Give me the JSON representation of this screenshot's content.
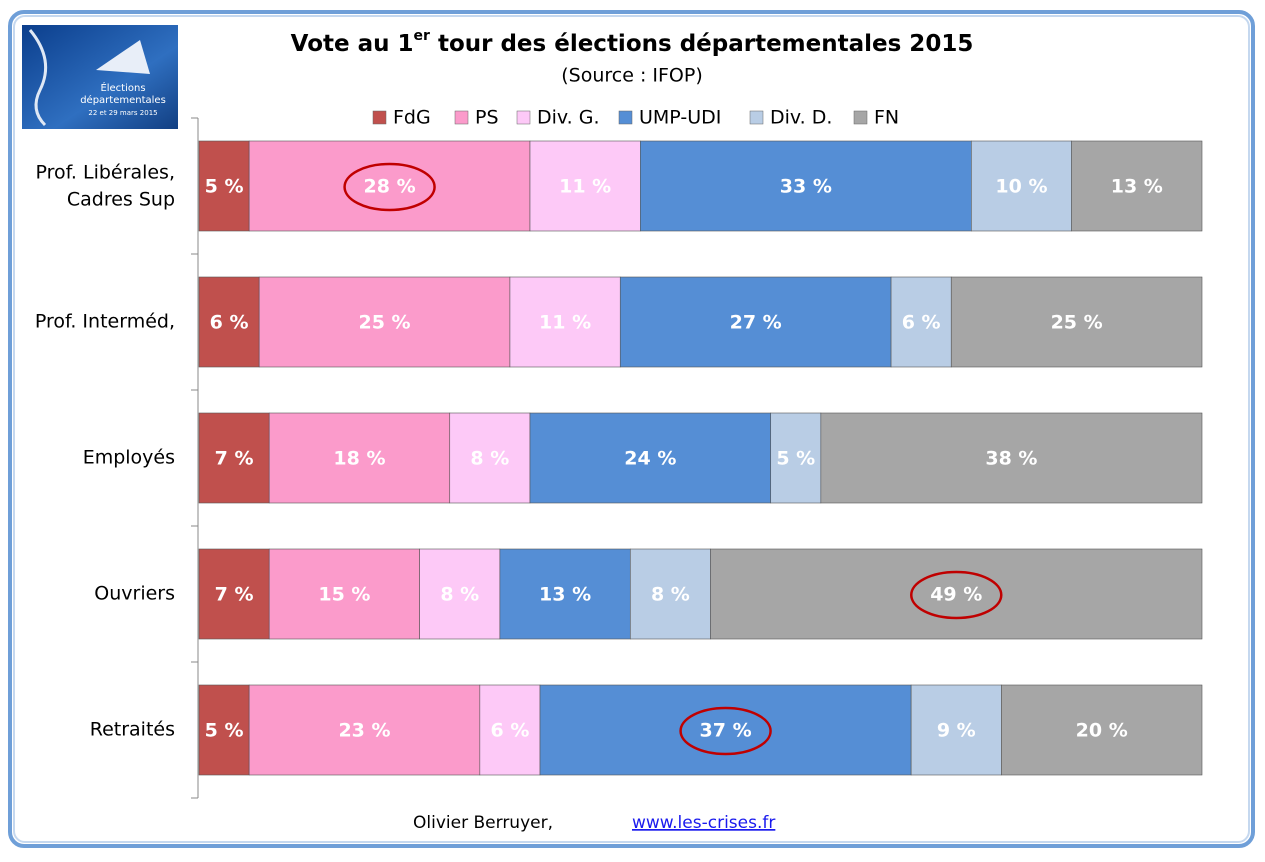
{
  "logo": {
    "line1": "Élections",
    "line2": "départementales",
    "dates": "22 et 29 mars 2015"
  },
  "footer": {
    "author": "Olivier Berruyer,",
    "link": "www.les-crises.fr"
  },
  "chart_data": {
    "type": "stacked-barh",
    "title": {
      "main": "Vote au 1",
      "sup": "er",
      "rest": " tour des élections départementales 2015"
    },
    "subtitle": "(Source : IFOP)",
    "categories": [
      "Prof. Libérales,\nCadres Sup",
      "Prof. Interméd,",
      "Employés",
      "Ouvriers",
      "Retraités"
    ],
    "xlim": [
      0,
      100
    ],
    "legend": "top",
    "series": [
      {
        "name": "FdG",
        "color": "#c0504d",
        "values": [
          5,
          6,
          7,
          7,
          5
        ],
        "value_labels": [
          "5 %",
          "6 %",
          "7 %",
          "7 %",
          "5 %"
        ]
      },
      {
        "name": "PS",
        "color": "#fb9bcb",
        "values": [
          28,
          25,
          18,
          15,
          23
        ],
        "value_labels": [
          "28 %",
          "25 %",
          "18 %",
          "15 %",
          "23 %"
        ]
      },
      {
        "name": "Div. G.",
        "color": "#fdc9f7",
        "values": [
          11,
          11,
          8,
          8,
          6
        ],
        "value_labels": [
          "11 %",
          "11 %",
          "8 %",
          "8 %",
          "6 %"
        ]
      },
      {
        "name": "UMP-UDI",
        "color": "#558ed5",
        "values": [
          33,
          27,
          24,
          13,
          37
        ],
        "value_labels": [
          "33 %",
          "27 %",
          "24 %",
          "13 %",
          "37 %"
        ]
      },
      {
        "name": "Div. D.",
        "color": "#b9cde5",
        "values": [
          10,
          6,
          5,
          8,
          9
        ],
        "value_labels": [
          "10 %",
          "6 %",
          "5 %",
          "8 %",
          "9 %"
        ]
      },
      {
        "name": "FN",
        "color": "#a6a6a6",
        "values": [
          13,
          25,
          38,
          49,
          20
        ],
        "value_labels": [
          "13 %",
          "25 %",
          "38 %",
          "49 %",
          "20 %"
        ]
      }
    ],
    "circled": [
      [
        1,
        0
      ],
      [
        5,
        3
      ],
      [
        3,
        4
      ]
    ],
    "circle_color": "#c00000"
  }
}
